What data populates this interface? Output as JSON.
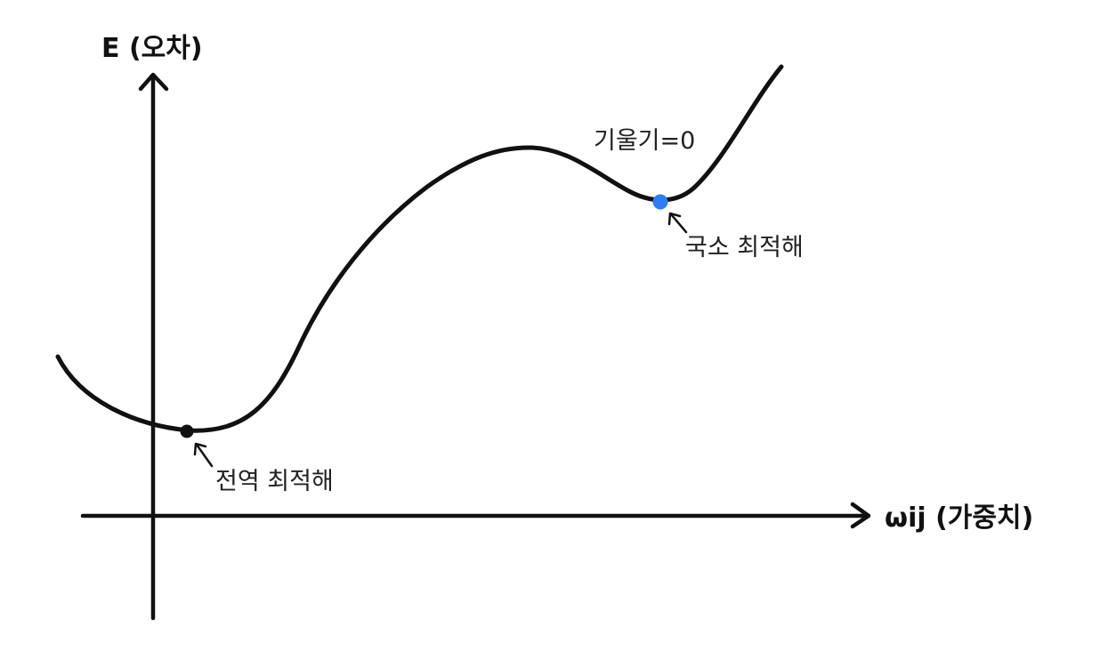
{
  "axes": {
    "y_label": "E (오차)",
    "x_label": "ωij (가중치)"
  },
  "annotations": {
    "slope_zero": "기울기=0",
    "local_optimum": "국소 최적해",
    "global_optimum": "전역  최적해"
  },
  "points": {
    "global_color": "#111111",
    "local_color": "#2f7cf5"
  }
}
